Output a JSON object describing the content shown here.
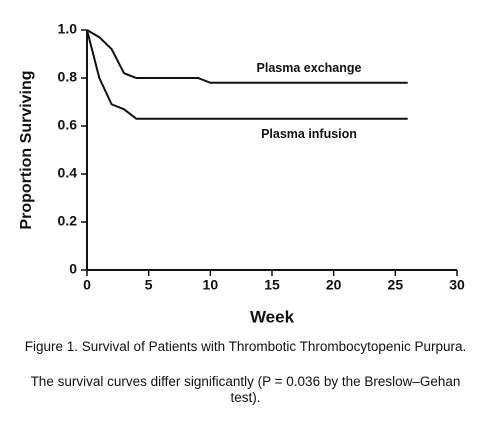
{
  "chart_data": {
    "type": "line",
    "xlabel": "Week",
    "ylabel": "Proportion Surviving",
    "xlim": [
      0,
      30
    ],
    "xticks": [
      0,
      5,
      10,
      15,
      20,
      25,
      30
    ],
    "ylim": [
      0,
      1
    ],
    "yticks": [
      0,
      0.2,
      0.4,
      0.6,
      0.8,
      {
        "value": 1,
        "label": "1.0"
      }
    ],
    "grid": false,
    "series": [
      {
        "name": "Plasma exchange",
        "color": "#111111",
        "x": [
          0,
          1,
          2,
          3,
          4,
          9,
          10,
          26
        ],
        "values": [
          1.0,
          0.97,
          0.92,
          0.82,
          0.8,
          0.8,
          0.78,
          0.78
        ]
      },
      {
        "name": "Plasma infusion",
        "color": "#111111",
        "x": [
          0,
          1,
          2,
          3,
          4,
          26
        ],
        "values": [
          1.0,
          0.8,
          0.69,
          0.67,
          0.63,
          0.63
        ]
      }
    ],
    "caption": "Figure 1. Survival of Patients with Thrombotic Thrombocytopenic Purpura.",
    "note": "The survival curves differ significantly (P = 0.036 by the Breslow–Gehan test)."
  }
}
